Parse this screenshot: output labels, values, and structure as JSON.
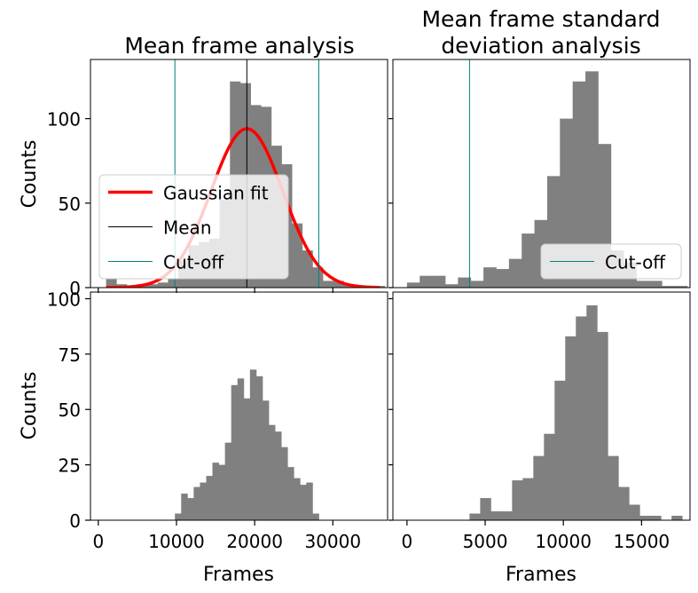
{
  "figure": {
    "shared_xlabel": "Frames",
    "shared_ylabel": "Counts"
  },
  "chart_data": [
    {
      "type": "bar",
      "panel": "top-left",
      "title": "Mean frame analysis",
      "xlabel": "",
      "ylabel": "Counts",
      "xlim": [
        -1000,
        37000
      ],
      "ylim": [
        0,
        135
      ],
      "xticks": [
        0,
        10000,
        20000,
        30000
      ],
      "yticks": [
        0,
        50,
        100
      ],
      "ytick_labels": [
        "0",
        "50",
        "100"
      ],
      "bin_width": 1320,
      "bins_left": [
        1000,
        2320,
        3640,
        4960,
        6280,
        7600,
        8920,
        10240,
        11560,
        12880,
        14200,
        15520,
        16840,
        18160,
        19480,
        20800,
        22120,
        23440,
        24760,
        26080,
        27400,
        28720,
        30040,
        31360,
        32680,
        34000,
        35320
      ],
      "values": [
        5,
        2,
        1,
        2,
        2,
        3,
        5,
        16,
        25,
        27,
        29,
        52,
        122,
        121,
        108,
        107,
        84,
        73,
        38,
        22,
        12,
        4,
        4,
        2,
        1,
        1,
        1
      ],
      "bar_color": "#808080",
      "gaussian_fit": {
        "amplitude": 94,
        "mean": 19000,
        "sigma": 4600,
        "color": "#ff0000"
      },
      "mean_line": {
        "x": 19000,
        "color": "#000000"
      },
      "cutoff_lines": {
        "x": [
          9800,
          28200
        ],
        "color": "#008080"
      },
      "legend": {
        "position": "lower-left",
        "entries": [
          {
            "label": "Gaussian fit",
            "color": "#ff0000",
            "style": "thick"
          },
          {
            "label": "Mean",
            "color": "#000000",
            "style": "thin"
          },
          {
            "label": "Cut-off",
            "color": "#008080",
            "style": "thin"
          }
        ]
      }
    },
    {
      "type": "bar",
      "panel": "top-right",
      "title": "Mean frame standard deviation analysis",
      "title_lines": [
        "Mean frame standard",
        "deviation analysis"
      ],
      "xlabel": "",
      "ylabel": "",
      "xlim": [
        -900,
        18100
      ],
      "ylim": [
        0,
        135
      ],
      "bin_width": 815,
      "bins_left": [
        0,
        815,
        1630,
        2445,
        3260,
        4075,
        4890,
        5705,
        6520,
        7335,
        8150,
        8965,
        9780,
        10595,
        11410,
        12225,
        13040,
        13855,
        14670,
        15485,
        16300,
        17115
      ],
      "values": [
        3,
        7,
        7,
        2,
        6,
        4,
        12,
        11,
        17,
        32,
        40,
        66,
        100,
        122,
        128,
        85,
        22,
        15,
        4,
        4,
        1,
        1
      ],
      "bar_color": "#808080",
      "cutoff_lines": {
        "x": [
          4000
        ],
        "color": "#008080"
      },
      "legend": {
        "position": "lower-right",
        "entries": [
          {
            "label": "Cut-off",
            "color": "#008080",
            "style": "thin"
          }
        ]
      }
    },
    {
      "type": "bar",
      "panel": "bottom-left",
      "title": "",
      "xlabel": "Frames",
      "ylabel": "Counts",
      "xlim": [
        -1000,
        37000
      ],
      "ylim": [
        0,
        103
      ],
      "xticks": [
        0,
        10000,
        20000,
        30000
      ],
      "xtick_labels": [
        "0",
        "10000",
        "20000",
        "30000"
      ],
      "yticks": [
        0,
        25,
        50,
        75,
        100
      ],
      "ytick_labels": [
        "0",
        "25",
        "50",
        "75",
        "100"
      ],
      "bin_width": 800,
      "bins_left": [
        9800,
        10600,
        11400,
        12200,
        13000,
        13800,
        14600,
        15400,
        16200,
        17000,
        17800,
        18600,
        19400,
        20200,
        21000,
        21800,
        22600,
        23400,
        24200,
        25000,
        25800,
        26600,
        27400
      ],
      "values": [
        3,
        12,
        10,
        15,
        17,
        20,
        26,
        25,
        35,
        61,
        64,
        55,
        68,
        65,
        54,
        43,
        40,
        33,
        24,
        19,
        16,
        17,
        3
      ],
      "bar_color": "#808080"
    },
    {
      "type": "bar",
      "panel": "bottom-right",
      "title": "",
      "xlabel": "Frames",
      "ylabel": "",
      "xlim": [
        -900,
        18100
      ],
      "ylim": [
        0,
        103
      ],
      "xticks": [
        0,
        5000,
        10000,
        15000
      ],
      "xtick_labels": [
        "0",
        "5000",
        "10000",
        "15000"
      ],
      "bin_width": 680,
      "bins_left": [
        4000,
        4680,
        5360,
        6040,
        6720,
        7400,
        8080,
        8760,
        9440,
        10120,
        10800,
        11480,
        12160,
        12840,
        13520,
        14200,
        14880,
        15560,
        16240,
        16920
      ],
      "values": [
        3,
        10,
        4,
        4,
        18,
        19,
        29,
        39,
        63,
        83,
        92,
        97,
        85,
        29,
        15,
        7,
        2,
        2,
        0,
        2
      ],
      "bar_color": "#808080"
    }
  ]
}
